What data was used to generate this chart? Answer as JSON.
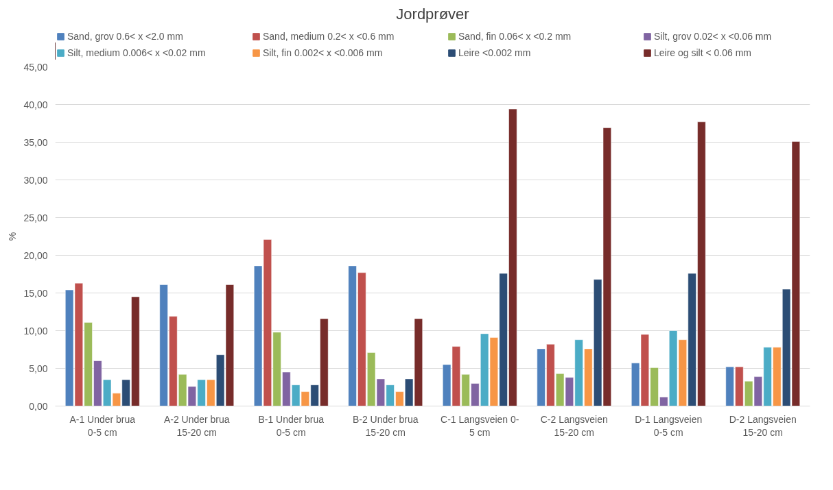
{
  "chart_data": {
    "type": "bar",
    "title": "Jordprøver",
    "ylabel": "%",
    "categories": [
      "A-1 Under brua\n0-5 cm",
      "A-2 Under brua\n15-20 cm",
      "B-1 Under brua\n0-5 cm",
      "B-2 Under brua\n15-20 cm",
      "C-1 Langsveien 0-\n5 cm",
      "C-2 Langsveien\n15-20 cm",
      "D-1 Langsveien\n0-5 cm",
      "D-2 Langsveien\n15-20 cm"
    ],
    "series": [
      {
        "name": "Sand, grov 0.6< x <2.0 mm",
        "color": "#4f81bd",
        "values": [
          15.4,
          16.1,
          18.6,
          18.6,
          5.5,
          7.6,
          5.7,
          5.2
        ]
      },
      {
        "name": "Sand, medium 0.2< x <0.6 mm",
        "color": "#c0504d",
        "values": [
          16.3,
          11.9,
          22.1,
          17.7,
          7.9,
          8.2,
          9.5,
          5.2
        ]
      },
      {
        "name": "Sand, fin 0.06< x <0.2 mm",
        "color": "#9bbb59",
        "values": [
          11.1,
          4.2,
          9.8,
          7.1,
          4.2,
          4.3,
          5.1,
          3.3
        ]
      },
      {
        "name": "Silt, grov 0.02< x <0.06 mm",
        "color": "#8064a2",
        "values": [
          6.0,
          2.6,
          4.5,
          3.6,
          3.0,
          3.8,
          1.2,
          3.9
        ]
      },
      {
        "name": "Silt, medium 0.006< x <0.02 mm",
        "color": "#4bacc6",
        "values": [
          3.5,
          3.5,
          2.8,
          2.8,
          9.6,
          8.8,
          10.0,
          7.8
        ]
      },
      {
        "name": "Silt, fin 0.002< x <0.006 mm",
        "color": "#f79646",
        "values": [
          1.7,
          3.5,
          1.9,
          1.9,
          9.1,
          7.6,
          8.8,
          7.8
        ]
      },
      {
        "name": "Leire <0.002 mm",
        "color": "#2c4d75",
        "values": [
          3.5,
          6.8,
          2.8,
          3.6,
          17.6,
          16.8,
          17.6,
          15.5
        ]
      },
      {
        "name": "Leire og silt < 0.06 mm",
        "color": "#772c2a",
        "values": [
          14.5,
          16.1,
          11.6,
          11.6,
          39.4,
          36.9,
          37.7,
          35.1
        ]
      }
    ],
    "ylim": [
      0,
      45
    ],
    "yticks": [
      {
        "value": 0,
        "label": "0,00"
      },
      {
        "value": 5,
        "label": "5,00"
      },
      {
        "value": 10,
        "label": "10,00"
      },
      {
        "value": 15,
        "label": "15,00"
      },
      {
        "value": 20,
        "label": "20,00"
      },
      {
        "value": 25,
        "label": "25,00"
      },
      {
        "value": 30,
        "label": "30,00"
      },
      {
        "value": 35,
        "label": "35,00"
      },
      {
        "value": 40,
        "label": "40,00"
      },
      {
        "value": 45,
        "label": "45,00"
      }
    ],
    "grid": "y",
    "legend": "top"
  }
}
